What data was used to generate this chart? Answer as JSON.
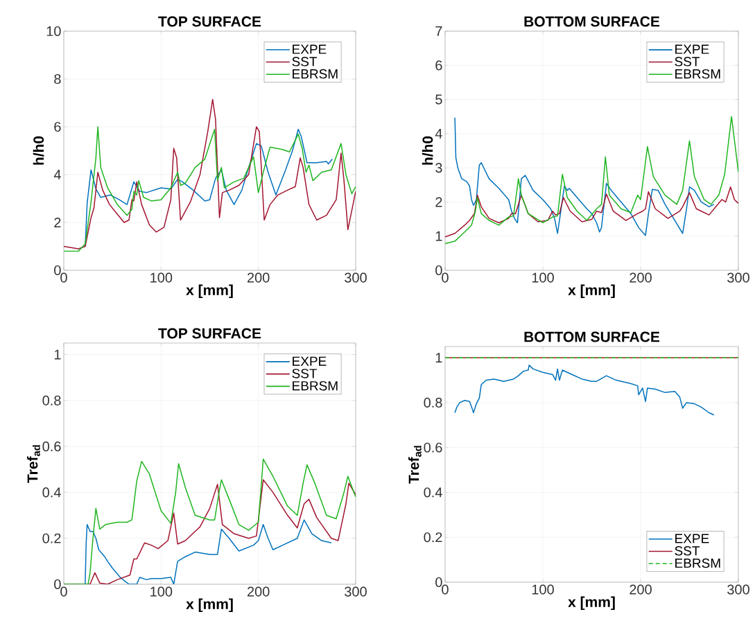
{
  "chart_data": [
    {
      "type": "line",
      "title": "TOP SURFACE",
      "xlabel": "x [mm]",
      "ylabel": "h/h0",
      "xlim": [
        0,
        300
      ],
      "ylim": [
        0,
        10
      ],
      "xticks": [
        0,
        100,
        200,
        300
      ],
      "yticks": [
        0,
        2,
        4,
        6,
        8,
        10
      ],
      "grid": true,
      "legend": "top right",
      "series": [
        {
          "name": "EXPE",
          "color": "#0072bd",
          "x": [
            22,
            24,
            28,
            33,
            38,
            48,
            57,
            65,
            72,
            78,
            85,
            100,
            110,
            117,
            122,
            133,
            145,
            150,
            156,
            162,
            167,
            175,
            183,
            190,
            198,
            203,
            210,
            218,
            228,
            235,
            241,
            244,
            250,
            260,
            270,
            272,
            276
          ],
          "values": [
            1.0,
            2.8,
            4.2,
            3.4,
            3.05,
            3.15,
            2.95,
            2.75,
            3.7,
            3.3,
            3.25,
            3.45,
            3.4,
            3.8,
            3.7,
            3.35,
            2.9,
            2.95,
            3.85,
            4.2,
            3.35,
            2.75,
            3.35,
            4.3,
            5.3,
            5.2,
            4.1,
            3.15,
            4.2,
            5.0,
            5.9,
            5.6,
            4.5,
            4.5,
            4.55,
            4.45,
            4.65
          ]
        },
        {
          "name": "SST",
          "color": "#a2142f",
          "x": [
            0,
            15,
            22,
            28,
            31,
            35,
            40,
            47,
            55,
            62,
            67,
            70,
            72,
            75,
            80,
            88,
            95,
            103,
            110,
            113,
            116,
            120,
            130,
            140,
            148,
            153,
            156,
            160,
            163,
            170,
            180,
            190,
            198,
            201,
            206,
            212,
            220,
            230,
            238,
            243,
            246,
            252,
            260,
            270,
            280,
            285,
            288,
            292,
            300
          ],
          "values": [
            1.0,
            0.9,
            1.0,
            2.2,
            2.6,
            4.1,
            3.35,
            2.75,
            2.35,
            2.0,
            2.1,
            2.95,
            2.9,
            3.7,
            2.75,
            1.9,
            1.6,
            1.8,
            2.95,
            5.1,
            4.7,
            2.1,
            2.85,
            4.0,
            5.8,
            7.15,
            6.3,
            2.2,
            3.25,
            3.35,
            3.55,
            4.0,
            6.0,
            5.8,
            2.1,
            2.75,
            3.15,
            3.35,
            3.5,
            4.7,
            4.3,
            2.75,
            2.1,
            2.3,
            2.95,
            4.9,
            3.75,
            1.7,
            3.3
          ]
        },
        {
          "name": "EBRSM",
          "color": "#1fb51f",
          "x": [
            0,
            15,
            22,
            28,
            33,
            35,
            38,
            45,
            55,
            65,
            70,
            72,
            75,
            77,
            82,
            90,
            100,
            110,
            117,
            120,
            125,
            135,
            145,
            155,
            158,
            162,
            165,
            175,
            185,
            195,
            200,
            205,
            212,
            225,
            232,
            241,
            245,
            249,
            252,
            256,
            265,
            275,
            285,
            290,
            296,
            300
          ],
          "values": [
            0.8,
            0.8,
            1.1,
            2.85,
            4.7,
            6.0,
            4.3,
            3.45,
            2.75,
            2.3,
            2.55,
            3.3,
            3.15,
            3.75,
            3.05,
            2.9,
            2.95,
            3.45,
            4.1,
            3.55,
            3.65,
            4.3,
            4.65,
            5.9,
            3.75,
            4.3,
            3.45,
            3.7,
            3.85,
            4.75,
            3.25,
            4.1,
            5.15,
            5.05,
            4.95,
            5.7,
            5.1,
            4.1,
            4.4,
            3.75,
            4.1,
            4.2,
            5.3,
            4.0,
            3.2,
            3.5
          ]
        }
      ]
    },
    {
      "type": "line",
      "title": "BOTTOM SURFACE",
      "xlabel": "x [mm]",
      "ylabel": "h/h0",
      "xlim": [
        0,
        300
      ],
      "ylim": [
        0,
        7
      ],
      "xticks": [
        0,
        100,
        200,
        300
      ],
      "yticks": [
        0,
        1,
        2,
        3,
        4,
        5,
        6,
        7
      ],
      "grid": true,
      "legend": "top right",
      "series": [
        {
          "name": "EXPE",
          "color": "#0072bd",
          "x": [
            10,
            11,
            13,
            17,
            22,
            25,
            27,
            29,
            32,
            35,
            37,
            45,
            55,
            65,
            68,
            71,
            74,
            78,
            82,
            90,
            100,
            108,
            112,
            115,
            118,
            122,
            125,
            127,
            135,
            145,
            150,
            155,
            158,
            160,
            165,
            170,
            180,
            190,
            198,
            205,
            208,
            212,
            218,
            225,
            235,
            243,
            247,
            250,
            255,
            262,
            270,
            275
          ],
          "values": [
            4.47,
            3.3,
            3.0,
            2.68,
            2.6,
            2.47,
            2.07,
            1.9,
            2.07,
            3.08,
            3.15,
            2.68,
            2.4,
            2.07,
            1.73,
            1.52,
            1.39,
            2.68,
            2.78,
            2.34,
            2.07,
            1.8,
            1.52,
            1.08,
            1.66,
            2.47,
            2.34,
            2.4,
            2.13,
            1.8,
            1.66,
            1.39,
            1.12,
            1.25,
            2.54,
            2.34,
            2.0,
            1.66,
            1.25,
            1.02,
            1.66,
            2.37,
            2.34,
            1.93,
            1.46,
            1.08,
            1.8,
            2.44,
            2.34,
            2.0,
            1.86,
            1.93
          ]
        },
        {
          "name": "SST",
          "color": "#a2142f",
          "x": [
            0,
            10,
            20,
            25,
            30,
            33,
            37,
            45,
            55,
            65,
            68,
            72,
            78,
            85,
            95,
            105,
            110,
            113,
            117,
            121,
            128,
            140,
            150,
            155,
            160,
            165,
            172,
            185,
            197,
            202,
            205,
            208,
            215,
            228,
            240,
            243,
            250,
            257,
            270,
            283,
            287,
            292,
            296,
            300
          ],
          "values": [
            0.98,
            1.08,
            1.32,
            1.46,
            1.66,
            2.2,
            1.86,
            1.52,
            1.39,
            1.52,
            1.66,
            1.66,
            2.2,
            1.66,
            1.42,
            1.46,
            1.73,
            1.62,
            1.66,
            2.13,
            1.73,
            1.42,
            1.49,
            1.73,
            1.69,
            2.23,
            1.73,
            1.46,
            1.66,
            1.73,
            1.8,
            2.3,
            1.8,
            1.52,
            1.73,
            1.86,
            2.27,
            1.8,
            1.62,
            2.07,
            2.0,
            2.44,
            2.07,
            1.96
          ]
        },
        {
          "name": "EBRSM",
          "color": "#1fb51f",
          "x": [
            0,
            10,
            20,
            27,
            31,
            33,
            37,
            45,
            55,
            65,
            70,
            75,
            78,
            85,
            100,
            110,
            115,
            120,
            125,
            135,
            145,
            155,
            160,
            164,
            168,
            180,
            190,
            197,
            200,
            207,
            213,
            225,
            237,
            243,
            250,
            255,
            265,
            272,
            280,
            286,
            293,
            300
          ],
          "values": [
            0.78,
            0.85,
            1.12,
            1.32,
            1.73,
            2.13,
            1.66,
            1.46,
            1.32,
            1.56,
            1.59,
            2.68,
            2.2,
            1.66,
            1.39,
            1.56,
            1.59,
            2.81,
            2.13,
            1.73,
            1.46,
            1.8,
            1.93,
            3.32,
            2.2,
            1.8,
            1.69,
            2.2,
            2.07,
            3.62,
            2.74,
            2.2,
            1.93,
            2.34,
            3.79,
            2.74,
            2.07,
            1.93,
            2.2,
            2.81,
            4.5,
            2.88
          ]
        }
      ]
    },
    {
      "type": "line",
      "title": "TOP SURFACE",
      "xlabel": "x [mm]",
      "ylabel": "Tref$_{ad}$",
      "xlim": [
        0,
        300
      ],
      "ylim": [
        0,
        1.05
      ],
      "xticks": [
        0,
        100,
        200,
        300
      ],
      "yticks": [
        0,
        0.2,
        0.4,
        0.6,
        0.8,
        1
      ],
      "grid": true,
      "legend": "top right",
      "series": [
        {
          "name": "EXPE",
          "color": "#0072bd",
          "x": [
            0,
            22,
            23,
            24,
            27,
            30,
            33,
            36,
            42,
            45,
            50,
            58,
            67,
            75,
            78,
            85,
            90,
            100,
            110,
            113,
            117,
            125,
            135,
            150,
            158,
            162,
            170,
            180,
            195,
            200,
            205,
            210,
            215,
            225,
            240,
            247,
            255,
            265,
            275
          ],
          "values": [
            0,
            0,
            0.18,
            0.26,
            0.23,
            0.23,
            0.2,
            0.15,
            0.12,
            0.1,
            0.07,
            0.03,
            0,
            0,
            0.03,
            0.02,
            0.025,
            0.025,
            0.03,
            0,
            0.1,
            0.12,
            0.14,
            0.13,
            0.13,
            0.24,
            0.2,
            0.145,
            0.17,
            0.19,
            0.26,
            0.2,
            0.15,
            0.17,
            0.2,
            0.28,
            0.22,
            0.19,
            0.18
          ]
        },
        {
          "name": "SST",
          "color": "#a2142f",
          "x": [
            0,
            27,
            32,
            37,
            45,
            55,
            68,
            72,
            75,
            83,
            90,
            97,
            107,
            110,
            113,
            117,
            125,
            140,
            150,
            158,
            163,
            175,
            190,
            198,
            205,
            215,
            230,
            240,
            247,
            252,
            260,
            275,
            282,
            290,
            293,
            300
          ],
          "values": [
            0,
            0,
            0.05,
            0.005,
            0,
            0.02,
            0.04,
            0.11,
            0.11,
            0.18,
            0.17,
            0.155,
            0.19,
            0.25,
            0.31,
            0.175,
            0.19,
            0.25,
            0.33,
            0.435,
            0.26,
            0.22,
            0.2,
            0.21,
            0.455,
            0.4,
            0.3,
            0.245,
            0.35,
            0.37,
            0.29,
            0.2,
            0.19,
            0.35,
            0.44,
            0.39
          ]
        },
        {
          "name": "EBRSM",
          "color": "#1fb51f",
          "x": [
            0,
            25,
            27,
            30,
            33,
            37,
            43,
            55,
            65,
            70,
            75,
            80,
            88,
            100,
            110,
            115,
            118,
            125,
            135,
            150,
            155,
            160,
            162,
            170,
            180,
            190,
            200,
            205,
            215,
            230,
            240,
            246,
            250,
            258,
            270,
            280,
            288,
            292,
            300
          ],
          "values": [
            0,
            0,
            0.05,
            0.2,
            0.33,
            0.24,
            0.26,
            0.27,
            0.27,
            0.28,
            0.45,
            0.535,
            0.48,
            0.32,
            0.265,
            0.4,
            0.525,
            0.42,
            0.3,
            0.28,
            0.28,
            0.41,
            0.455,
            0.37,
            0.26,
            0.235,
            0.27,
            0.545,
            0.47,
            0.34,
            0.3,
            0.44,
            0.52,
            0.44,
            0.3,
            0.285,
            0.4,
            0.47,
            0.38
          ]
        }
      ]
    },
    {
      "type": "line",
      "title": "BOTTOM SURFACE",
      "xlabel": "x [mm]",
      "ylabel": "Tref$_{ad}$",
      "xlim": [
        0,
        300
      ],
      "ylim": [
        0,
        1.05
      ],
      "xticks": [
        0,
        100,
        200,
        300
      ],
      "yticks": [
        0,
        0.2,
        0.4,
        0.6,
        0.8,
        1
      ],
      "grid": true,
      "legend": "bottom right",
      "series": [
        {
          "name": "EXPE",
          "color": "#0072bd",
          "x": [
            10,
            12,
            15,
            20,
            25,
            28,
            29,
            32,
            35,
            37,
            42,
            50,
            60,
            70,
            75,
            80,
            85,
            86,
            90,
            100,
            110,
            113,
            115,
            117,
            120,
            130,
            140,
            150,
            155,
            165,
            175,
            190,
            197,
            198,
            202,
            205,
            207,
            215,
            225,
            235,
            240,
            243,
            247,
            255,
            262,
            270,
            275
          ],
          "values": [
            0.755,
            0.78,
            0.8,
            0.81,
            0.805,
            0.77,
            0.755,
            0.795,
            0.82,
            0.88,
            0.9,
            0.905,
            0.895,
            0.905,
            0.92,
            0.94,
            0.945,
            0.967,
            0.95,
            0.935,
            0.925,
            0.9,
            0.95,
            0.9,
            0.945,
            0.925,
            0.905,
            0.895,
            0.895,
            0.92,
            0.9,
            0.885,
            0.875,
            0.835,
            0.865,
            0.805,
            0.865,
            0.86,
            0.845,
            0.85,
            0.825,
            0.775,
            0.8,
            0.795,
            0.78,
            0.755,
            0.745
          ]
        },
        {
          "name": "SST",
          "color": "#a2142f",
          "x": [
            0,
            300
          ],
          "values": [
            1,
            1
          ]
        },
        {
          "name": "EBRSM",
          "color": "#1fb51f",
          "line_style": "dashed",
          "x": [
            0,
            300
          ],
          "values": [
            1,
            1
          ]
        }
      ]
    }
  ]
}
